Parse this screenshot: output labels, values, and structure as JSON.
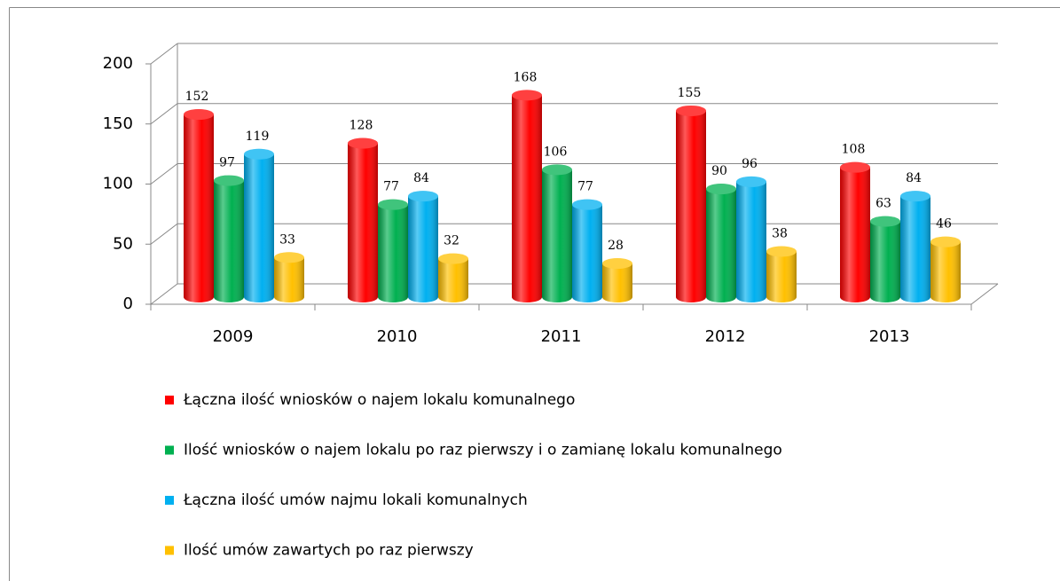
{
  "chart_data": {
    "type": "bar3d",
    "categories": [
      "2009",
      "2010",
      "2011",
      "2012",
      "2013"
    ],
    "series": [
      {
        "name": "Łączna ilość wniosków o najem lokalu komunalnego",
        "color": "#ff0000",
        "values": [
          152,
          128,
          168,
          155,
          108
        ]
      },
      {
        "name": "Ilość wniosków o najem lokalu po raz pierwszy i o zamianę lokalu komunalnego",
        "color": "#00b050",
        "values": [
          97,
          77,
          106,
          90,
          63
        ]
      },
      {
        "name": "Łączna ilość umów najmu lokali komunalnych",
        "color": "#00b0f0",
        "values": [
          119,
          84,
          77,
          96,
          84
        ]
      },
      {
        "name": "Ilość umów zawartych po raz pierwszy",
        "color": "#ffc000",
        "values": [
          33,
          32,
          28,
          38,
          46
        ]
      }
    ],
    "ylim": [
      0,
      200
    ],
    "yticks": [
      0,
      50,
      100,
      150,
      200
    ],
    "grid": true,
    "legend": "bottom"
  }
}
